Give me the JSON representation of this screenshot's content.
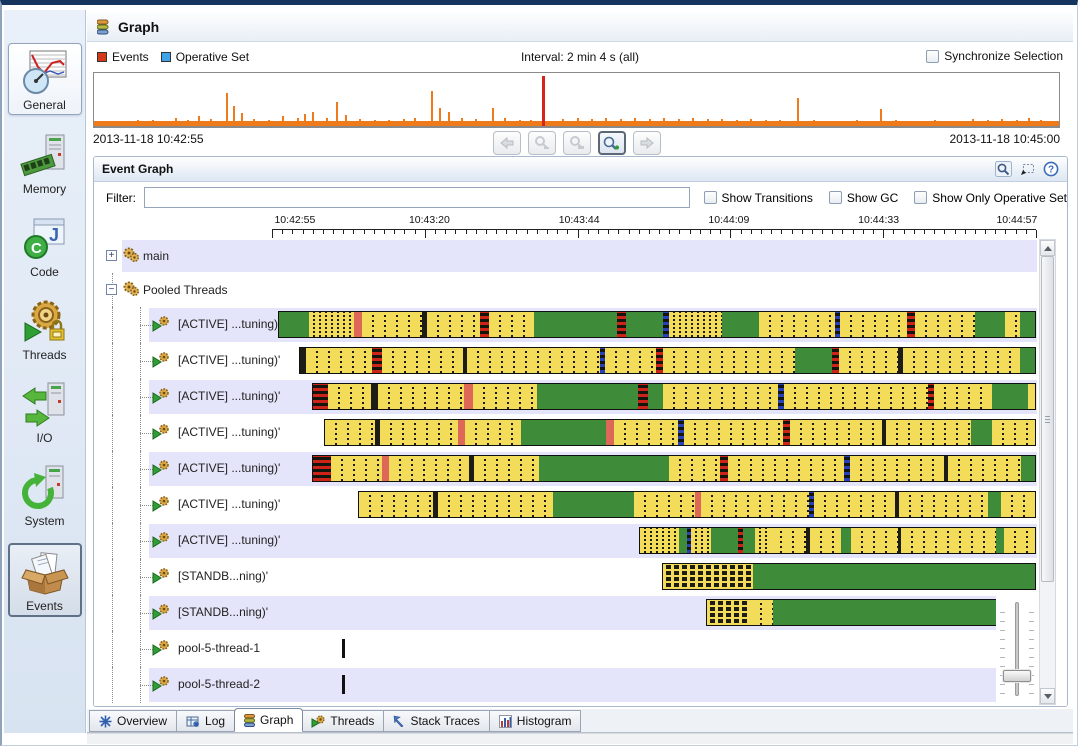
{
  "sidebar": {
    "items": [
      {
        "label": "General",
        "state": "highlight"
      },
      {
        "label": "Memory",
        "state": "normal"
      },
      {
        "label": "Code",
        "state": "normal"
      },
      {
        "label": "Threads",
        "state": "normal"
      },
      {
        "label": "I/O",
        "state": "normal"
      },
      {
        "label": "System",
        "state": "normal"
      },
      {
        "label": "Events",
        "state": "selected"
      }
    ]
  },
  "header": {
    "title": "Graph"
  },
  "overview": {
    "legend": [
      {
        "label": "Events",
        "color": "#d23b1a"
      },
      {
        "label": "Operative Set",
        "color": "#41a2ea"
      }
    ],
    "interval": "Interval: 2 min 4 s (all)",
    "synchronize_label": "Synchronize Selection",
    "start_time": "2013-11-18 10:42:55",
    "end_time": "2013-11-18 10:45:00",
    "nav_buttons": [
      "back",
      "zoom-out",
      "zoom-selection",
      "zoom-in",
      "forward"
    ],
    "spike_colors": {
      "normal": "#ee7a19",
      "alert": "#d7251a"
    },
    "spikes": [
      [
        2,
        10
      ],
      [
        3.2,
        8
      ],
      [
        4.5,
        12
      ],
      [
        6,
        12
      ],
      [
        7.2,
        10
      ],
      [
        8.4,
        16
      ],
      [
        9.6,
        12
      ],
      [
        10.8,
        18
      ],
      [
        12,
        14
      ],
      [
        13.7,
        62
      ],
      [
        14.4,
        38
      ],
      [
        15.2,
        24
      ],
      [
        16.5,
        14
      ],
      [
        18,
        12
      ],
      [
        19.5,
        18
      ],
      [
        21,
        16
      ],
      [
        21.8,
        22
      ],
      [
        22.6,
        26
      ],
      [
        24,
        16
      ],
      [
        25.1,
        46
      ],
      [
        26,
        20
      ],
      [
        27.5,
        14
      ],
      [
        29,
        12
      ],
      [
        30.5,
        12
      ],
      [
        32,
        14
      ],
      [
        33.2,
        16
      ],
      [
        34.9,
        66
      ],
      [
        35.8,
        34
      ],
      [
        36.7,
        26
      ],
      [
        38,
        16
      ],
      [
        39.5,
        14
      ],
      [
        41.2,
        34
      ],
      [
        42.5,
        16
      ],
      [
        44,
        12
      ],
      [
        45.2,
        12
      ],
      [
        46.4,
        95,
        1
      ],
      [
        48.5,
        14
      ],
      [
        50,
        16
      ],
      [
        51.5,
        14
      ],
      [
        53,
        16
      ],
      [
        54.5,
        14
      ],
      [
        56,
        16
      ],
      [
        57.5,
        14
      ],
      [
        59,
        16
      ],
      [
        60.5,
        14
      ],
      [
        62,
        16
      ],
      [
        63.5,
        14
      ],
      [
        65,
        14
      ],
      [
        66.5,
        12
      ],
      [
        68,
        14
      ],
      [
        69.5,
        12
      ],
      [
        71,
        12
      ],
      [
        72.8,
        52
      ],
      [
        74.5,
        12
      ],
      [
        76,
        10
      ],
      [
        77.5,
        10
      ],
      [
        79,
        12
      ],
      [
        81.4,
        32
      ],
      [
        83,
        12
      ],
      [
        85,
        10
      ],
      [
        87,
        12
      ],
      [
        89,
        10
      ],
      [
        91,
        14
      ],
      [
        92.5,
        12
      ],
      [
        94,
        14
      ],
      [
        95.5,
        12
      ],
      [
        96.8,
        16
      ],
      [
        98,
        12
      ],
      [
        99.2,
        10
      ]
    ]
  },
  "event_graph": {
    "title": "Event Graph",
    "filter_label": "Filter:",
    "filter_value": "",
    "options": [
      {
        "label": "Show Transitions",
        "checked": false
      },
      {
        "label": "Show GC",
        "checked": false
      },
      {
        "label": "Show Only Operative Set",
        "checked": false
      }
    ],
    "axis_ticks": [
      "10:42:55",
      "10:43:20",
      "10:43:44",
      "10:44:09",
      "10:44:33",
      "10:44:57"
    ],
    "rows": [
      {
        "type": "group",
        "label": "main",
        "toggle": "+",
        "shade": "lav"
      },
      {
        "type": "group",
        "label": "Pooled Threads",
        "toggle": "-",
        "shade": "none"
      },
      {
        "type": "thread",
        "label": "[ACTIVE] ...tuning)'",
        "shade": "lav",
        "start": 0.8,
        "segs": [
          [
            "g",
            4
          ],
          [
            "yd",
            6
          ],
          [
            "r",
            1
          ],
          [
            "y",
            8
          ],
          [
            "k",
            0.7
          ],
          [
            "y",
            7
          ],
          [
            "rd",
            1.3
          ],
          [
            "y",
            6
          ],
          [
            "g",
            11
          ],
          [
            "rd",
            1.2
          ],
          [
            "g",
            5
          ],
          [
            "b",
            0.8
          ],
          [
            "yd",
            7
          ],
          [
            "g",
            5
          ],
          [
            "y",
            10
          ],
          [
            "b",
            0.7
          ],
          [
            "y",
            9
          ],
          [
            "rd",
            1
          ],
          [
            "y",
            8
          ],
          [
            "g",
            4
          ],
          [
            "y",
            2
          ],
          [
            "g",
            2
          ]
        ]
      },
      {
        "type": "thread",
        "label": "[ACTIVE] ...tuning)'",
        "shade": "none",
        "start": 3.5,
        "segs": [
          [
            "k",
            0.8
          ],
          [
            "y",
            9
          ],
          [
            "rd",
            1.4
          ],
          [
            "y",
            11
          ],
          [
            "k",
            0.6
          ],
          [
            "y",
            18
          ],
          [
            "b",
            0.7
          ],
          [
            "y",
            7
          ],
          [
            "rd",
            0.9
          ],
          [
            "y",
            18
          ],
          [
            "g",
            5
          ],
          [
            "rd",
            1
          ],
          [
            "y",
            8
          ],
          [
            "k",
            0.6
          ],
          [
            "y",
            16
          ],
          [
            "g",
            2
          ]
        ]
      },
      {
        "type": "thread",
        "label": "[ACTIVE] ...tuning)'",
        "shade": "lav",
        "start": 5.3,
        "segs": [
          [
            "rd",
            2
          ],
          [
            "y",
            6
          ],
          [
            "k",
            0.9
          ],
          [
            "y",
            12
          ],
          [
            "r",
            1.2
          ],
          [
            "y",
            9
          ],
          [
            "g",
            14
          ],
          [
            "rd",
            1.4
          ],
          [
            "g",
            2
          ],
          [
            "y",
            16
          ],
          [
            "b",
            0.9
          ],
          [
            "y",
            20
          ],
          [
            "rd",
            0.8
          ],
          [
            "y",
            8
          ],
          [
            "g",
            5
          ],
          [
            "y",
            1
          ]
        ]
      },
      {
        "type": "thread",
        "label": "[ACTIVE] ...tuning)'",
        "shade": "none",
        "start": 6.8,
        "segs": [
          [
            "y",
            7
          ],
          [
            "k",
            0.8
          ],
          [
            "y",
            11
          ],
          [
            "r",
            0.9
          ],
          [
            "y",
            8
          ],
          [
            "g",
            12
          ],
          [
            "r",
            1.1
          ],
          [
            "y",
            9
          ],
          [
            "b",
            0.9
          ],
          [
            "y",
            14
          ],
          [
            "rd",
            0.9
          ],
          [
            "y",
            13
          ],
          [
            "k",
            0.6
          ],
          [
            "y",
            12
          ],
          [
            "g",
            3
          ],
          [
            "y",
            6
          ]
        ]
      },
      {
        "type": "thread",
        "label": "[ACTIVE] ...tuning)'",
        "shade": "lav",
        "start": 5.3,
        "segs": [
          [
            "rd",
            2.4
          ],
          [
            "y",
            7
          ],
          [
            "r",
            1
          ],
          [
            "y",
            11
          ],
          [
            "k",
            0.7
          ],
          [
            "y",
            9
          ],
          [
            "g",
            18
          ],
          [
            "y",
            7
          ],
          [
            "rd",
            1.1
          ],
          [
            "y",
            16
          ],
          [
            "b",
            0.8
          ],
          [
            "y",
            13
          ],
          [
            "k",
            0.6
          ],
          [
            "y",
            10
          ],
          [
            "g",
            2
          ]
        ]
      },
      {
        "type": "thread",
        "label": "[ACTIVE] ...tuning)'",
        "shade": "none",
        "start": 11.2,
        "segs": [
          [
            "y",
            11
          ],
          [
            "k",
            0.7
          ],
          [
            "y",
            17
          ],
          [
            "g",
            12
          ],
          [
            "y",
            9
          ],
          [
            "r",
            0.8
          ],
          [
            "y",
            16
          ],
          [
            "b",
            0.7
          ],
          [
            "y",
            12
          ],
          [
            "k",
            0.6
          ],
          [
            "y",
            13
          ],
          [
            "g",
            2
          ],
          [
            "y",
            5
          ]
        ]
      },
      {
        "type": "thread",
        "label": "[ACTIVE] ...tuning)'",
        "shade": "lav",
        "start": 48,
        "segs": [
          [
            "yd",
            10
          ],
          [
            "g",
            2
          ],
          [
            "b",
            1
          ],
          [
            "yd",
            5
          ],
          [
            "g",
            7
          ],
          [
            "rd",
            1.2
          ],
          [
            "g",
            3
          ],
          [
            "yd",
            4
          ],
          [
            "y",
            9
          ],
          [
            "k",
            1
          ],
          [
            "y",
            8
          ],
          [
            "g",
            2.5
          ],
          [
            "y",
            12
          ],
          [
            "k",
            0.8
          ],
          [
            "y",
            24
          ],
          [
            "g",
            2
          ],
          [
            "y",
            8
          ]
        ]
      },
      {
        "type": "thread",
        "label": "[STANDB...ning)'",
        "shade": "none",
        "start": 51.1,
        "segs": [
          [
            "h",
            24
          ],
          [
            "g",
            76
          ]
        ]
      },
      {
        "type": "thread",
        "label": "[STANDB...ning)'",
        "shade": "lav",
        "start": 56.8,
        "segs": [
          [
            "h",
            13
          ],
          [
            "y",
            7
          ],
          [
            "g",
            80
          ]
        ]
      },
      {
        "type": "thread",
        "label": "pool-5-thread-1",
        "shade": "none",
        "tick": 9.1
      },
      {
        "type": "thread",
        "label": "pool-5-thread-2",
        "shade": "lav",
        "tick": 9.1
      }
    ]
  },
  "tabs": {
    "items": [
      {
        "label": "Overview",
        "selected": false
      },
      {
        "label": "Log",
        "selected": false
      },
      {
        "label": "Graph",
        "selected": true
      },
      {
        "label": "Threads",
        "selected": false
      },
      {
        "label": "Stack Traces",
        "selected": false
      },
      {
        "label": "Histogram",
        "selected": false
      }
    ]
  }
}
